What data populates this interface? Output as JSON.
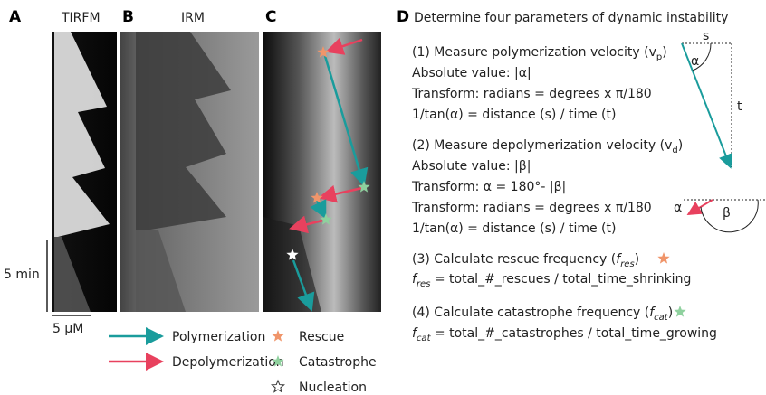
{
  "panels": {
    "a": {
      "letter": "A",
      "label": "TIRFM"
    },
    "b": {
      "letter": "B",
      "label": "IRM"
    },
    "c": {
      "letter": "C"
    }
  },
  "scale_bars": {
    "time": "5 min",
    "distance": "5 μM"
  },
  "legend": {
    "arrows": [
      "Polymerization",
      "Depolymerization"
    ],
    "markers": [
      "Rescue",
      "Catastrophe",
      "Nucleation"
    ]
  },
  "steps_panel": {
    "letter": "D",
    "title": "Determine four parameters of dynamic instability",
    "lines": [
      [
        "(1) Measure polymerization velocity (v",
        "p",
        ")"
      ],
      [
        "Absolute value: |α|"
      ],
      [
        "Transform: radians = degrees x π/180"
      ],
      [
        "1/tan(α) = distance (s) / time (t)"
      ],
      [
        "(2) Measure depolymerization velocity (v",
        "d",
        ")"
      ],
      [
        "Absolute value: |β|"
      ],
      [
        "Transform: α = 180°- |β|"
      ],
      [
        "Transform: radians = degrees x π/180"
      ],
      [
        "1/tan(α) = distance (s) / time (t)"
      ],
      [
        "(3) Calculate rescue frequency (",
        "f",
        "res",
        ")"
      ],
      [
        "f",
        "res",
        " = total_#_rescues / total_time_shrinking"
      ],
      [
        "(4) Calculate catastrophe frequency (",
        "f",
        "cat",
        ")"
      ],
      [
        "f",
        "cat",
        " = total_#_catastrophes / total_time_growing"
      ]
    ],
    "diagram_labels": {
      "s": "s",
      "t": "t",
      "alpha_top": "α",
      "beta": "β",
      "alpha_bottom": "α"
    }
  }
}
